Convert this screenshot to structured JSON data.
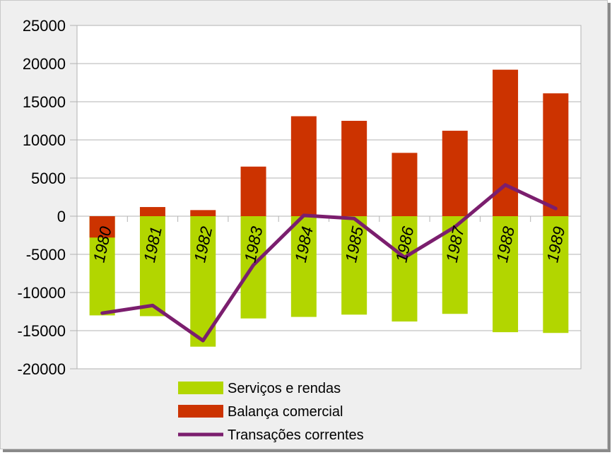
{
  "chart_data": {
    "type": "bar",
    "categories": [
      "1980",
      "1981",
      "1982",
      "1983",
      "1984",
      "1985",
      "1986",
      "1987",
      "1988",
      "1989"
    ],
    "series": [
      {
        "name": "Serviços e rendas",
        "type": "bar",
        "color": "#b2d600",
        "values": [
          -13000,
          -13100,
          -17100,
          -13400,
          -13200,
          -12900,
          -13800,
          -12800,
          -15200,
          -15300
        ]
      },
      {
        "name": "Balança comercial",
        "type": "bar",
        "color": "#cc3300",
        "values": [
          -2800,
          1200,
          800,
          6500,
          13100,
          12500,
          8300,
          11200,
          19200,
          16100
        ]
      },
      {
        "name": "Transações correntes",
        "type": "line",
        "color": "#7b1e6e",
        "values": [
          -12700,
          -11700,
          -16300,
          -6400,
          100,
          -300,
          -5400,
          -1400,
          4100,
          1000
        ]
      }
    ],
    "ylim": [
      -20000,
      25000
    ],
    "yticks": [
      "25000",
      "20000",
      "15000",
      "10000",
      "5000",
      "0",
      "-5000",
      "-10000",
      "-15000",
      "-20000"
    ],
    "ytick_values": [
      25000,
      20000,
      15000,
      10000,
      5000,
      0,
      -5000,
      -10000,
      -15000,
      -20000
    ],
    "grid": true,
    "legend_position": "bottom",
    "xlabel": "",
    "ylabel": "",
    "title": ""
  }
}
